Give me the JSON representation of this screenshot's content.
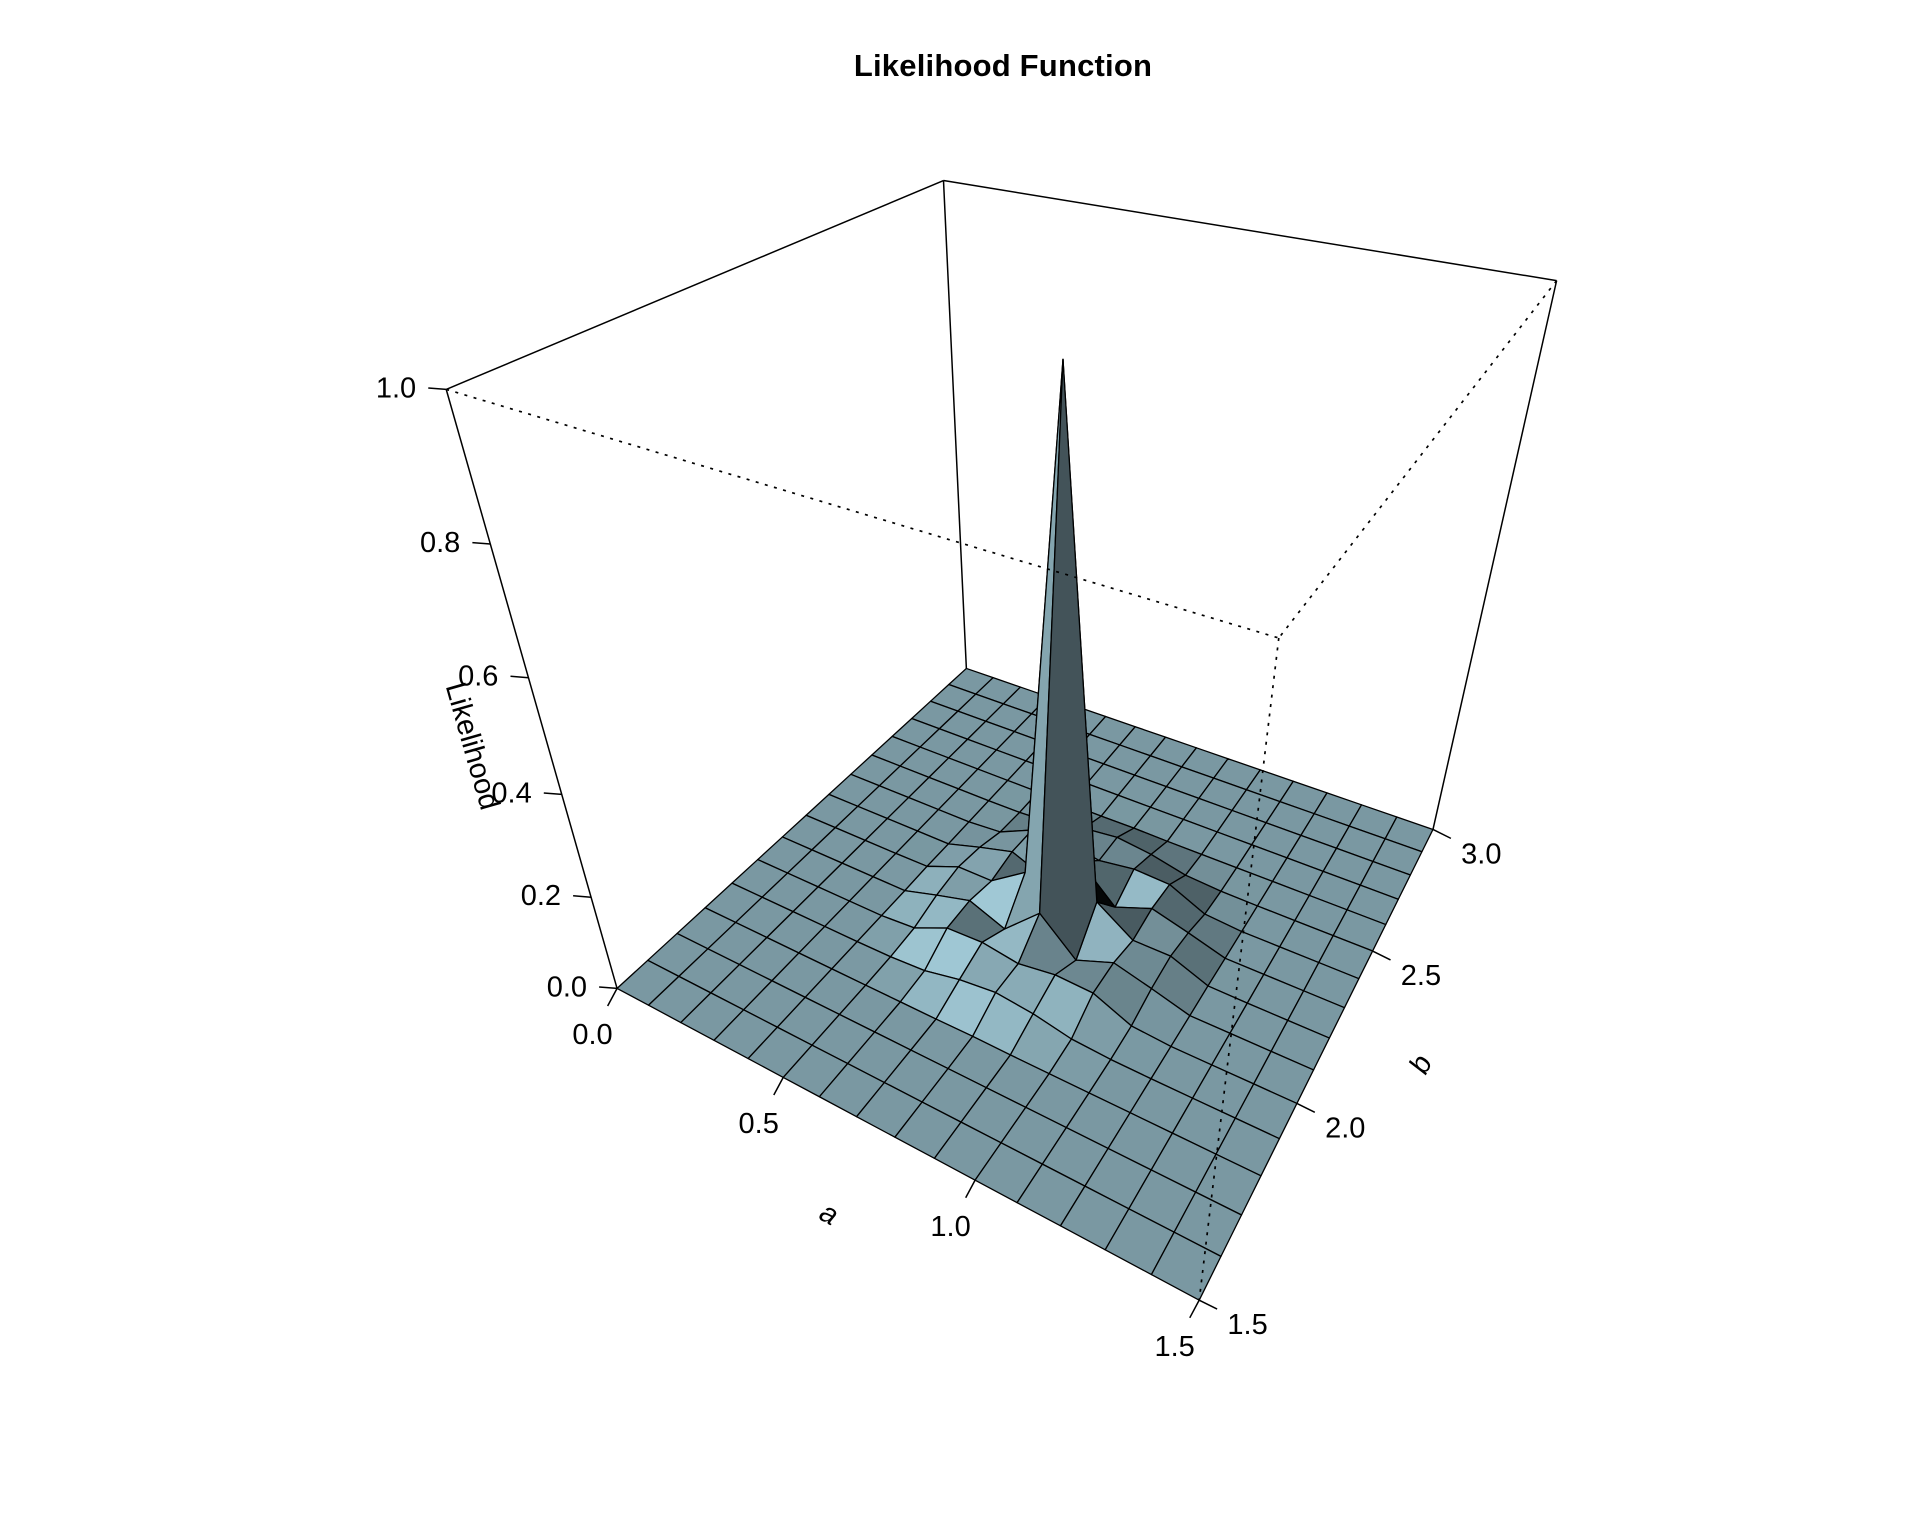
{
  "title": "Likelihood Function",
  "chart_data": {
    "type": "surface3d",
    "title": "Likelihood Function",
    "xlabel": "a",
    "ylabel": "b",
    "zlabel": "Likelihood",
    "x_range": [
      0.0,
      1.5
    ],
    "y_range": [
      1.5,
      3.0
    ],
    "z_range": [
      0.0,
      1.0
    ],
    "x_ticks": [
      {
        "v": 0.0,
        "label": "0.0"
      },
      {
        "v": 0.5,
        "label": "0.5"
      },
      {
        "v": 1.0,
        "label": "1.0"
      },
      {
        "v": 1.5,
        "label": "1.5"
      }
    ],
    "y_ticks": [
      {
        "v": 1.5,
        "label": "1.5"
      },
      {
        "v": 2.0,
        "label": "2.0"
      },
      {
        "v": 2.5,
        "label": "2.5"
      },
      {
        "v": 3.0,
        "label": "3.0"
      }
    ],
    "z_ticks": [
      {
        "v": 0.0,
        "label": "0.0"
      },
      {
        "v": 0.2,
        "label": "0.2"
      },
      {
        "v": 0.4,
        "label": "0.4"
      },
      {
        "v": 0.6,
        "label": "0.6"
      },
      {
        "v": 0.8,
        "label": "0.8"
      },
      {
        "v": 1.0,
        "label": "1.0"
      }
    ],
    "x": [
      0.0,
      0.1,
      0.2,
      0.3,
      0.4,
      0.5,
      0.6,
      0.7,
      0.8,
      0.9,
      1.0,
      1.1,
      1.2,
      1.3,
      1.4,
      1.5
    ],
    "y": [
      1.5,
      1.6,
      1.7,
      1.8,
      1.9,
      2.0,
      2.1,
      2.2,
      2.3,
      2.4,
      2.5,
      2.6,
      2.7,
      2.8,
      2.9,
      3.0
    ],
    "z_matrix": [
      [
        0,
        0,
        0,
        0,
        0,
        0,
        0,
        0,
        0,
        0,
        0,
        0,
        0,
        0,
        0,
        0
      ],
      [
        0,
        0,
        0,
        0,
        0,
        0,
        0,
        0,
        0,
        0,
        0,
        0,
        0,
        0,
        0,
        0
      ],
      [
        0,
        0,
        0,
        0,
        0,
        0,
        0,
        0,
        0,
        0,
        0,
        0,
        0,
        0,
        0,
        0
      ],
      [
        0,
        0,
        0,
        0,
        0,
        0,
        0,
        0,
        0.001,
        0,
        0,
        0,
        0,
        0,
        0,
        0
      ],
      [
        0,
        0,
        0,
        0,
        0,
        0.001,
        0.006,
        0.023,
        0.032,
        0.023,
        0.006,
        0.001,
        0,
        0,
        0,
        0
      ],
      [
        0,
        0,
        0,
        0,
        0,
        0.006,
        0.041,
        0.044,
        0.032,
        0.044,
        0.041,
        0.006,
        0,
        0,
        0,
        0
      ],
      [
        0,
        0,
        0,
        0,
        0,
        0.023,
        0.044,
        0.013,
        0.084,
        0.013,
        0.044,
        0.023,
        0,
        0,
        0,
        0
      ],
      [
        0,
        0,
        0,
        0,
        0.001,
        0.032,
        0.032,
        0.084,
        0.98,
        0.084,
        0.032,
        0.032,
        0.001,
        0,
        0,
        0
      ],
      [
        0,
        0,
        0,
        0,
        0,
        0.023,
        0.044,
        0.013,
        0.084,
        0.013,
        0.044,
        0.023,
        0,
        0,
        0,
        0
      ],
      [
        0,
        0,
        0,
        0,
        0,
        0.006,
        0.041,
        0.044,
        0.032,
        0.044,
        0.041,
        0.006,
        0,
        0,
        0,
        0
      ],
      [
        0,
        0,
        0,
        0,
        0,
        0.001,
        0.006,
        0.023,
        0.032,
        0.023,
        0.006,
        0.001,
        0,
        0,
        0,
        0
      ],
      [
        0,
        0,
        0,
        0,
        0,
        0,
        0,
        0,
        0.001,
        0,
        0,
        0,
        0,
        0,
        0,
        0
      ],
      [
        0,
        0,
        0,
        0,
        0,
        0,
        0,
        0,
        0,
        0,
        0,
        0,
        0,
        0,
        0,
        0
      ],
      [
        0,
        0,
        0,
        0,
        0,
        0,
        0,
        0,
        0,
        0,
        0,
        0,
        0,
        0,
        0,
        0
      ],
      [
        0,
        0,
        0,
        0,
        0,
        0,
        0,
        0,
        0,
        0,
        0,
        0,
        0,
        0,
        0,
        0
      ],
      [
        0,
        0,
        0,
        0,
        0,
        0,
        0,
        0,
        0,
        0,
        0,
        0,
        0,
        0,
        0,
        0
      ]
    ],
    "peak": {
      "a": 0.8,
      "b": 2.2,
      "likelihood": 0.98
    },
    "grid": "15x15 facets, black facet borders",
    "legend": "none",
    "surface_base_color": "#ADD8E6",
    "surface_flat_color": "#79979F",
    "line_color": "#000000",
    "background_color": "#FFFFFF"
  }
}
